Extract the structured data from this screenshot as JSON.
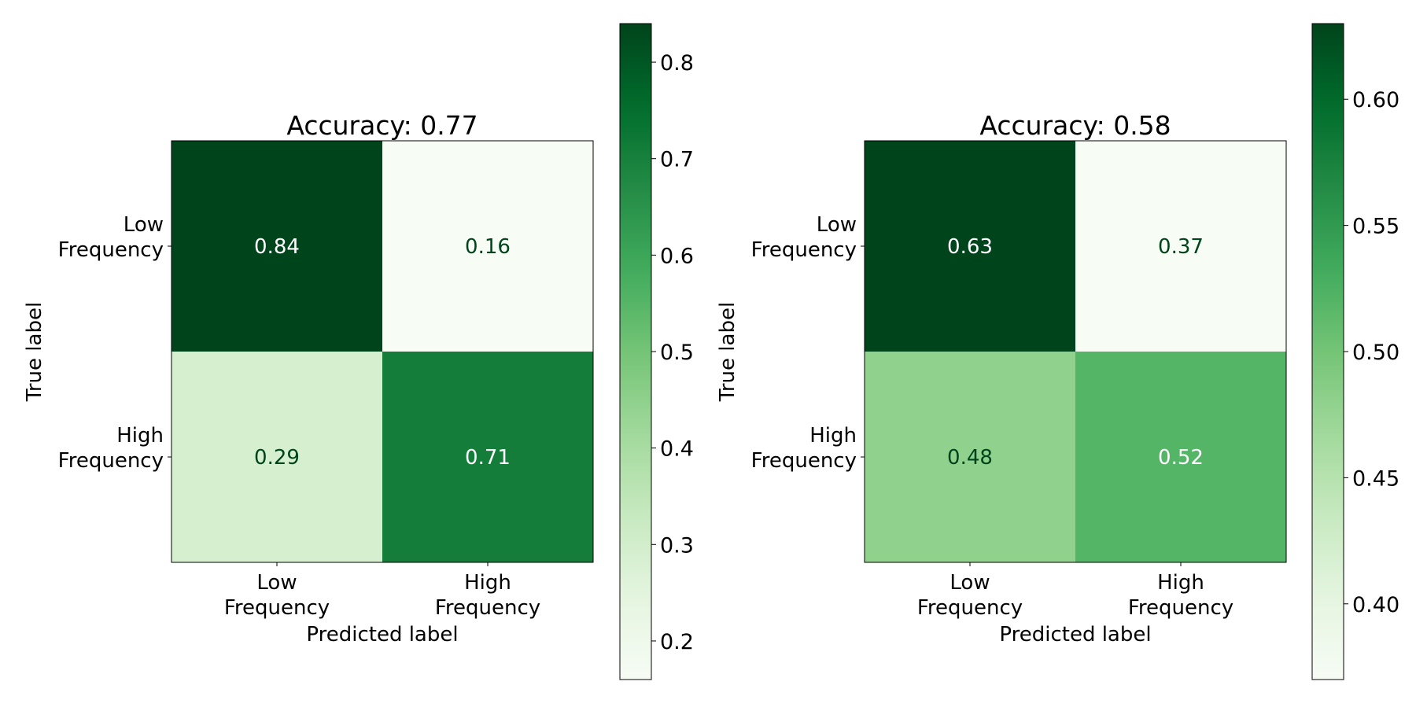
{
  "chart_data": [
    {
      "type": "heatmap",
      "title": "Accuracy: 0.77",
      "xlabel": "Predicted label",
      "ylabel": "True label",
      "x_categories": [
        [
          "Low",
          "Frequency"
        ],
        [
          "High",
          "Frequency"
        ]
      ],
      "y_categories": [
        [
          "Low",
          "Frequency"
        ],
        [
          "High",
          "Frequency"
        ]
      ],
      "values": [
        [
          0.84,
          0.16
        ],
        [
          0.29,
          0.71
        ]
      ],
      "colormap": "Greens",
      "colorbar": {
        "range": [
          0.16,
          0.84
        ],
        "ticks": [
          0.2,
          0.3,
          0.4,
          0.5,
          0.6,
          0.7,
          0.8
        ],
        "tick_labels": [
          "0.2",
          "0.3",
          "0.4",
          "0.5",
          "0.6",
          "0.7",
          "0.8"
        ]
      }
    },
    {
      "type": "heatmap",
      "title": "Accuracy: 0.58",
      "xlabel": "Predicted label",
      "ylabel": "True label",
      "x_categories": [
        [
          "Low",
          "Frequency"
        ],
        [
          "High",
          "Frequency"
        ]
      ],
      "y_categories": [
        [
          "Low",
          "Frequency"
        ],
        [
          "High",
          "Frequency"
        ]
      ],
      "values": [
        [
          0.63,
          0.37
        ],
        [
          0.48,
          0.52
        ]
      ],
      "colormap": "Greens",
      "colorbar": {
        "range": [
          0.37,
          0.63
        ],
        "ticks": [
          0.4,
          0.45,
          0.5,
          0.55,
          0.6
        ],
        "tick_labels": [
          "0.40",
          "0.45",
          "0.50",
          "0.55",
          "0.60"
        ]
      }
    }
  ],
  "colors": {
    "greens_scale": [
      "#f7fcf5",
      "#e5f5e0",
      "#c7e9c0",
      "#a1d99b",
      "#74c476",
      "#41ab5d",
      "#238b45",
      "#006d2c",
      "#00441b"
    ],
    "text_dark": "#00441b",
    "text_light": "#ffffff"
  }
}
